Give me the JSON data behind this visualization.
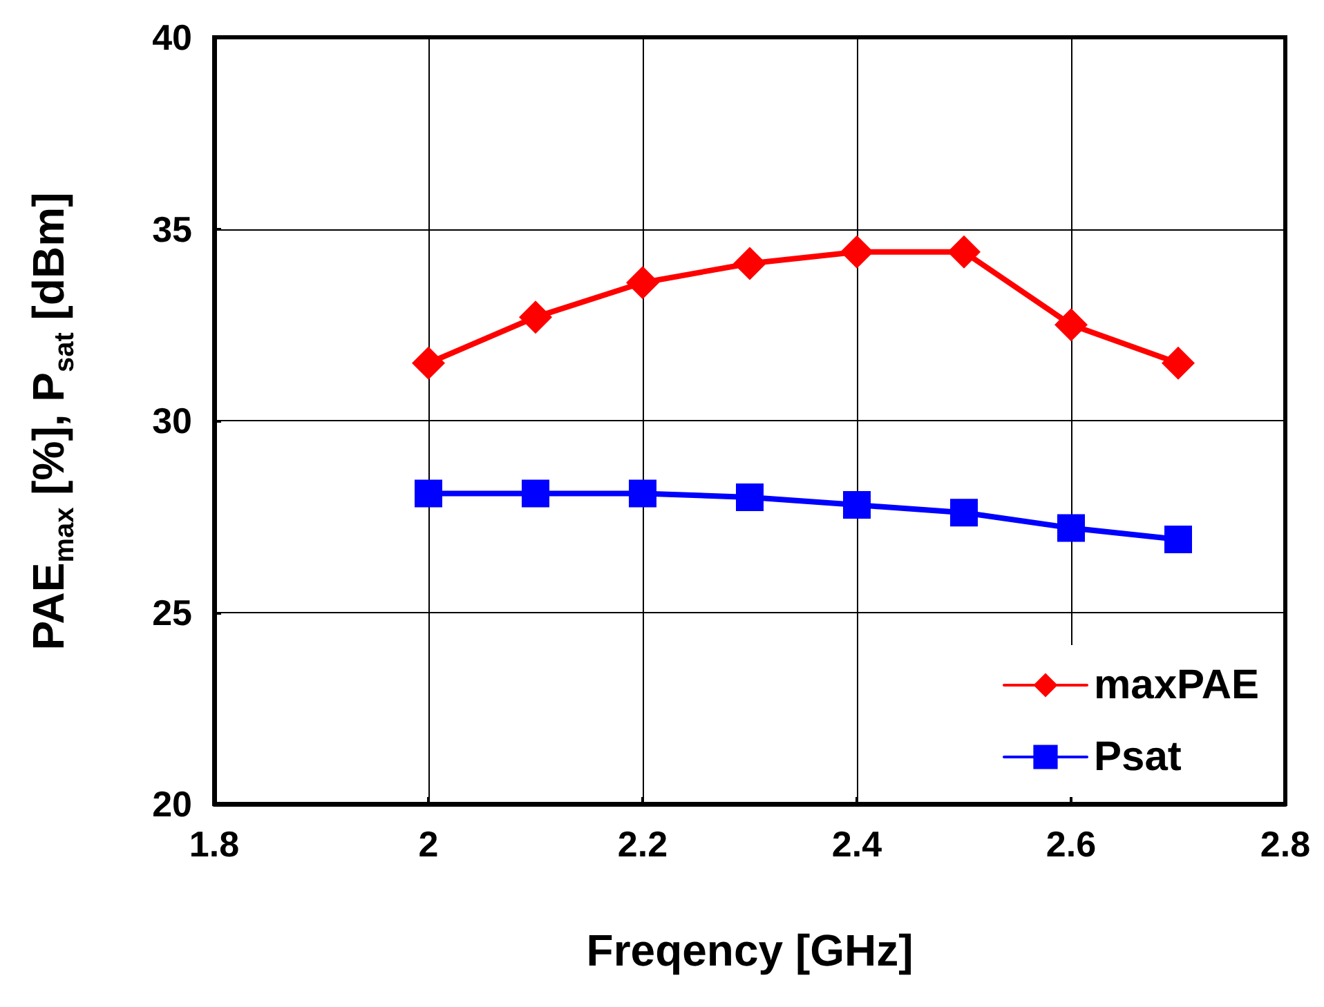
{
  "chart_data": {
    "type": "line",
    "xlabel": "Freqency [GHz]",
    "ylabel": "PAE$_{max}$ [%], P$_{sat}$ [dBm]",
    "x": [
      2,
      2.1,
      2.2,
      2.3,
      2.4,
      2.5,
      2.6,
      2.7
    ],
    "series": [
      {
        "name": "maxPAE",
        "color": "#ff0000",
        "marker": "diamond",
        "values": [
          31.5,
          32.7,
          33.6,
          34.1,
          34.4,
          34.4,
          32.5,
          31.5
        ]
      },
      {
        "name": "Psat",
        "color": "#0000ff",
        "marker": "square",
        "values": [
          28.1,
          28.1,
          28.1,
          28.0,
          27.8,
          27.6,
          27.2,
          26.9
        ]
      }
    ],
    "xlim": [
      1.8,
      2.8
    ],
    "xticks": [
      1.8,
      2,
      2.2,
      2.4,
      2.6,
      2.8
    ],
    "ylim": [
      20,
      40
    ],
    "yticks": [
      20,
      25,
      30,
      35,
      40
    ],
    "grid": true,
    "legend": "bottom right",
    "line_style": "solid"
  }
}
